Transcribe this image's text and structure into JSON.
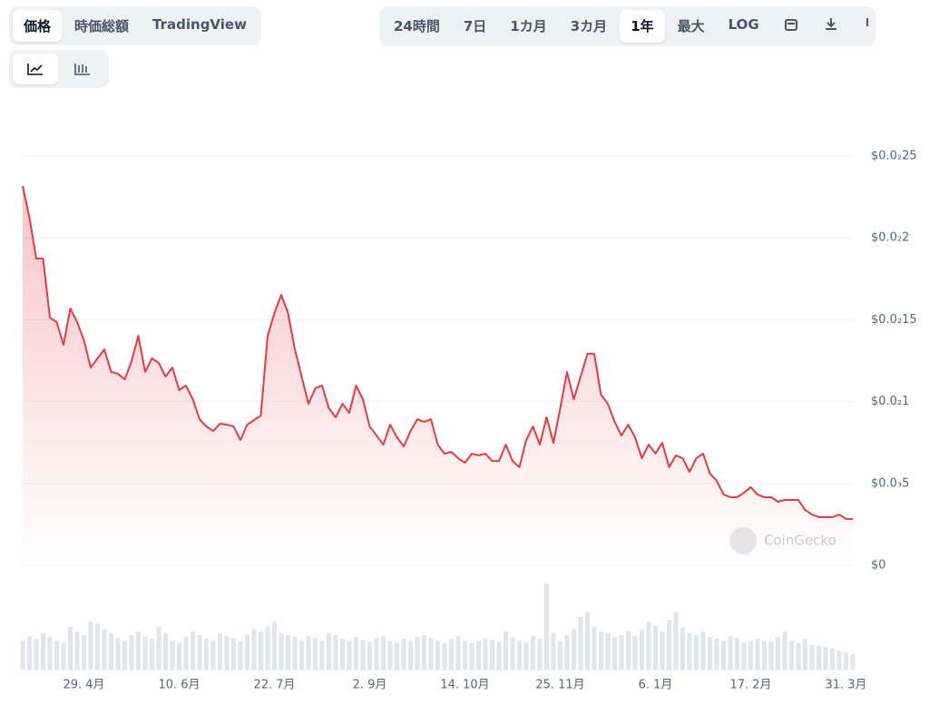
{
  "tabs": [
    "価格",
    "時価総額",
    "TradingView"
  ],
  "ranges": [
    "24時間",
    "7日",
    "1カ月",
    "3カ月",
    "1年",
    "最大",
    "LOG"
  ],
  "watermark": "CoinGecko",
  "chart_data": {
    "type": "line",
    "color": "#ea3943",
    "grid": true,
    "ylim": [
      0,
      0.0025
    ],
    "yticks": [
      {
        "value": 0.0025,
        "label": "$0.0₂25"
      },
      {
        "value": 0.002,
        "label": "$0.0₂2"
      },
      {
        "value": 0.0015,
        "label": "$0.0₂15"
      },
      {
        "value": 0.001,
        "label": "$0.0₂1"
      },
      {
        "value": 0.0005,
        "label": "$0.0₃5"
      },
      {
        "value": 0,
        "label": "$0"
      }
    ],
    "categories": [
      null,
      null,
      null,
      null,
      null,
      null,
      null,
      null,
      null,
      "29. 4月",
      null,
      null,
      null,
      null,
      null,
      null,
      null,
      null,
      null,
      null,
      null,
      null,
      null,
      "10. 6月",
      null,
      null,
      null,
      null,
      null,
      null,
      null,
      null,
      null,
      null,
      null,
      null,
      null,
      "22. 7月",
      null,
      null,
      null,
      null,
      null,
      null,
      null,
      null,
      null,
      null,
      null,
      null,
      null,
      "2. 9月",
      null,
      null,
      null,
      null,
      null,
      null,
      null,
      null,
      null,
      null,
      null,
      null,
      null,
      "14. 10月",
      null,
      null,
      null,
      null,
      null,
      null,
      null,
      null,
      null,
      null,
      null,
      null,
      null,
      "25. 11月",
      null,
      null,
      null,
      null,
      null,
      null,
      null,
      null,
      null,
      null,
      null,
      null,
      null,
      "6. 1月",
      null,
      null,
      null,
      null,
      null,
      null,
      null,
      null,
      null,
      null,
      null,
      null,
      null,
      "17. 2月",
      null,
      null,
      null,
      null,
      null,
      null,
      null,
      null,
      null,
      null,
      null,
      null,
      null,
      "31. 3月",
      null
    ],
    "values": [
      0.002317,
      0.002123,
      0.001874,
      0.001874,
      0.001513,
      0.001486,
      0.001347,
      0.001569,
      0.001486,
      0.001375,
      0.001208,
      0.001264,
      0.001319,
      0.001181,
      0.00117,
      0.001136,
      0.001247,
      0.001402,
      0.001181,
      0.001264,
      0.001236,
      0.001153,
      0.001208,
      0.00107,
      0.001098,
      0.001014,
      0.000892,
      0.000848,
      0.00082,
      0.000865,
      0.000859,
      0.000848,
      0.000765,
      0.000859,
      0.000887,
      0.000915,
      0.001402,
      0.001541,
      0.001652,
      0.001541,
      0.001319,
      0.001153,
      0.000987,
      0.001081,
      0.001098,
      0.000959,
      0.000904,
      0.000987,
      0.000931,
      0.001098,
      0.001014,
      0.000848,
      0.000793,
      0.000737,
      0.000859,
      0.000782,
      0.000726,
      0.00082,
      0.000892,
      0.000876,
      0.000892,
      0.000737,
      0.000682,
      0.000693,
      0.000654,
      0.000626,
      0.000682,
      0.000671,
      0.000682,
      0.000637,
      0.000637,
      0.000737,
      0.000637,
      0.000599,
      0.000765,
      0.000848,
      0.000737,
      0.000904,
      0.000748,
      0.000959,
      0.001181,
      0.001014,
      0.001153,
      0.001292,
      0.001292,
      0.001042,
      0.000987,
      0.000876,
      0.000793,
      0.000859,
      0.000782,
      0.000654,
      0.000737,
      0.000682,
      0.000748,
      0.000599,
      0.000671,
      0.000654,
      0.000571,
      0.000654,
      0.000682,
      0.00056,
      0.000516,
      0.000432,
      0.000416,
      0.000416,
      0.000443,
      0.000477,
      0.000432,
      0.000416,
      0.000416,
      0.000388,
      0.000399,
      0.000399,
      0.000399,
      0.000338,
      0.00031,
      0.000294,
      0.000294,
      0.000294,
      0.00031,
      0.000283,
      0.000283
    ],
    "volume": [
      30,
      35,
      32,
      38,
      34,
      30,
      28,
      45,
      40,
      36,
      50,
      48,
      42,
      38,
      33,
      30,
      36,
      40,
      35,
      32,
      45,
      38,
      30,
      28,
      34,
      40,
      36,
      32,
      30,
      38,
      35,
      33,
      30,
      36,
      42,
      40,
      45,
      50,
      38,
      36,
      34,
      30,
      35,
      33,
      30,
      38,
      36,
      32,
      30,
      34,
      31,
      29,
      33,
      35,
      30,
      28,
      32,
      30,
      34,
      36,
      33,
      30,
      28,
      32,
      35,
      30,
      28,
      30,
      33,
      31,
      29,
      40,
      34,
      30,
      28,
      35,
      32,
      90,
      38,
      30,
      36,
      42,
      55,
      60,
      45,
      40,
      38,
      34,
      36,
      40,
      35,
      42,
      50,
      46,
      40,
      52,
      60,
      44,
      38,
      36,
      40,
      34,
      32,
      30,
      35,
      33,
      28,
      30,
      32,
      30,
      29,
      34,
      40,
      30,
      28,
      32,
      26,
      25,
      24,
      22,
      20,
      18,
      16
    ]
  }
}
